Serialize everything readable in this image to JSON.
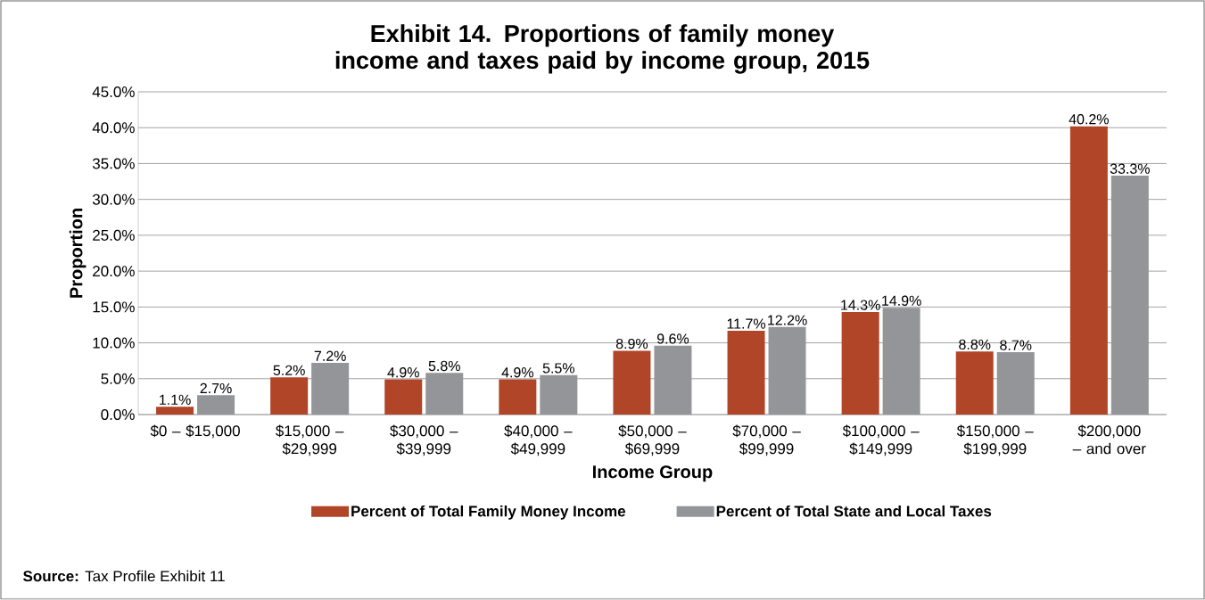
{
  "chart_data": {
    "type": "bar",
    "title": "Exhibit 14. Proportions of family money income and taxes paid by income group, 2015",
    "xlabel": "Income Group",
    "ylabel": "Proportion",
    "categories": [
      "$0 – $15,000",
      "$15,000 – $29,999",
      "$30,000 – $39,999",
      "$40,000 – $49,999",
      "$50,000 – $69,999",
      "$70,000 – $99,999",
      "$100,000 – $149,999",
      "$150,000 – $199,999",
      "$200,000 – and over"
    ],
    "series": [
      {
        "name": "Percent of Total Family Money Income",
        "color": "#b04527",
        "values": [
          1.1,
          5.2,
          4.9,
          4.9,
          8.9,
          11.7,
          14.3,
          8.8,
          40.2
        ],
        "value_labels": [
          "1.1%",
          "5.2%",
          "4.9%",
          "4.9%",
          "8.9%",
          "11.7%",
          "14.3%",
          "8.8%",
          "40.2%"
        ]
      },
      {
        "name": "Percent of Total State and Local Taxes",
        "color": "#939598",
        "values": [
          2.7,
          7.2,
          5.8,
          5.5,
          9.6,
          12.2,
          14.9,
          8.7,
          33.3
        ],
        "value_labels": [
          "2.7%",
          "7.2%",
          "5.8%",
          "5.5%",
          "9.6%",
          "12.2%",
          "14.9%",
          "8.7%",
          "33.3%"
        ]
      }
    ],
    "ylim": [
      0,
      45
    ],
    "yticks": [
      {
        "value": 0,
        "label": "0.0%"
      },
      {
        "value": 5,
        "label": "5.0%"
      },
      {
        "value": 10,
        "label": "10.0%"
      },
      {
        "value": 15,
        "label": "15.0%"
      },
      {
        "value": 20,
        "label": "20.0%"
      },
      {
        "value": 25,
        "label": "25.0%"
      },
      {
        "value": 30,
        "label": "30.0%"
      },
      {
        "value": 35,
        "label": "35.0%"
      },
      {
        "value": 40,
        "label": "40.0%"
      },
      {
        "value": 45,
        "label": "45.0%"
      }
    ],
    "grid": "y",
    "legend": "bottom",
    "annotations": [
      "**Source:** Tax Profile Exhibit 11"
    ]
  }
}
